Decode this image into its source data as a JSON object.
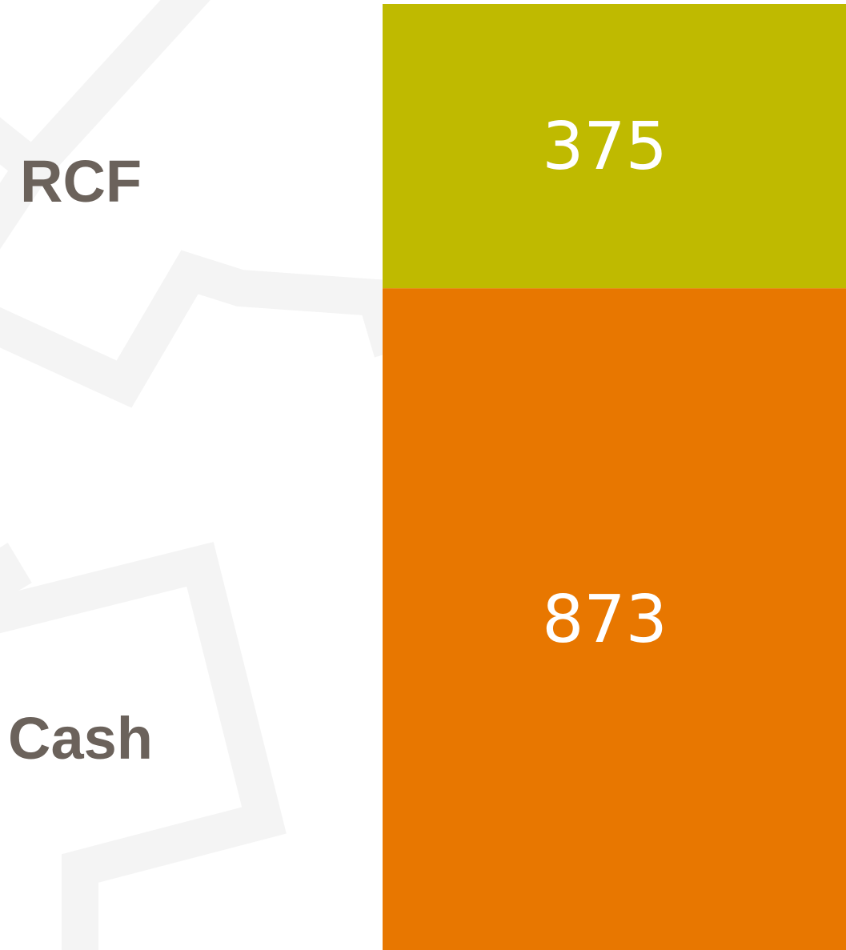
{
  "chart_data": {
    "type": "bar",
    "stacked": true,
    "categories": [
      null
    ],
    "series": [
      {
        "name": "Cash",
        "color": "#e87700",
        "values": [
          873
        ]
      },
      {
        "name": "RCF",
        "color": "#bfba00",
        "values": [
          375
        ]
      }
    ],
    "ylim": [
      0,
      1248
    ]
  }
}
